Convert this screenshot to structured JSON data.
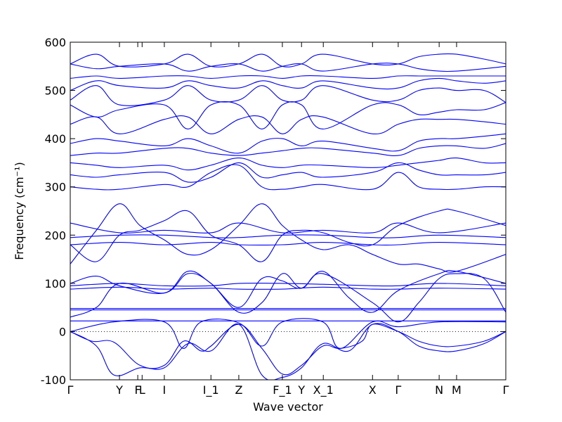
{
  "chart_data": {
    "type": "line",
    "title": "",
    "xlabel": "Wave vector",
    "ylabel": "Frequency (cm⁻¹)",
    "ylim": [
      -100,
      600
    ],
    "yticks": [
      -100,
      0,
      100,
      200,
      300,
      400,
      500,
      600
    ],
    "grid": false,
    "legend": "none",
    "line_color": "#0000ff",
    "zero_line": {
      "y": 0,
      "style": "dotted"
    },
    "xlim": [
      0,
      1
    ],
    "x_ticks": [
      {
        "label": "Γ",
        "x": 0.0
      },
      {
        "label": "Y",
        "x": 0.113
      },
      {
        "label": "F",
        "x": 0.155
      },
      {
        "label": "L",
        "x": 0.165
      },
      {
        "label": "I",
        "x": 0.216
      },
      {
        "label": "I_1",
        "x": 0.323
      },
      {
        "label": "Z",
        "x": 0.387
      },
      {
        "label": "F_1",
        "x": 0.487
      },
      {
        "label": "Y",
        "x": 0.531
      },
      {
        "label": "X_1",
        "x": 0.581
      },
      {
        "label": "X",
        "x": 0.694
      },
      {
        "label": "Γ",
        "x": 0.753
      },
      {
        "label": "N",
        "x": 0.847
      },
      {
        "label": "M",
        "x": 0.887
      },
      {
        "label": "Γ",
        "x": 1.0
      }
    ],
    "series": [
      {
        "x": [
          0,
          0.06,
          0.1,
          0.16,
          0.216,
          0.27,
          0.323,
          0.387,
          0.44,
          0.487,
          0.531,
          0.58,
          0.64,
          0.694,
          0.753,
          0.8,
          0.847,
          0.887,
          0.95,
          1.0
        ],
        "y": [
          0,
          -30,
          -90,
          -75,
          -75,
          -25,
          -40,
          15,
          -90,
          -95,
          -75,
          -25,
          -40,
          15,
          0,
          -30,
          -40,
          -40,
          -25,
          0
        ]
      },
      {
        "x": [
          0,
          0.05,
          0.1,
          0.16,
          0.216,
          0.26,
          0.3,
          0.323,
          0.387,
          0.44,
          0.487,
          0.531,
          0.58,
          0.62,
          0.67,
          0.694,
          0.753,
          0.8,
          0.847,
          0.887,
          0.95,
          1.0
        ],
        "y": [
          0,
          -20,
          -22,
          -70,
          -70,
          -20,
          -40,
          -30,
          15,
          -35,
          -88,
          -70,
          -30,
          -35,
          -20,
          15,
          0,
          -20,
          -30,
          -30,
          -20,
          0
        ]
      },
      {
        "x": [
          0,
          0.1,
          0.216,
          0.26,
          0.3,
          0.387,
          0.44,
          0.487,
          0.58,
          0.62,
          0.694,
          0.753,
          0.847,
          1.0
        ],
        "y": [
          0,
          20,
          20,
          -35,
          20,
          18,
          -30,
          20,
          20,
          -35,
          20,
          10,
          20,
          20
        ]
      },
      {
        "x": [
          0,
          0.1,
          0.216,
          0.3,
          0.387,
          0.487,
          0.58,
          0.694,
          0.753,
          0.847,
          1.0
        ],
        "y": [
          22,
          22,
          22,
          22,
          22,
          22,
          22,
          22,
          22,
          22,
          22
        ]
      },
      {
        "x": [
          0,
          0.1,
          0.216,
          0.3,
          0.387,
          0.487,
          0.58,
          0.694,
          0.753,
          0.847,
          1.0
        ],
        "y": [
          45,
          45,
          45,
          45,
          45,
          45,
          45,
          45,
          45,
          45,
          45
        ]
      },
      {
        "x": [
          0,
          0.1,
          0.216,
          0.3,
          0.387,
          0.487,
          0.58,
          0.694,
          0.753,
          0.847,
          1.0
        ],
        "y": [
          48,
          48,
          48,
          48,
          48,
          48,
          48,
          48,
          48,
          48,
          48
        ]
      },
      {
        "x": [
          0,
          0.06,
          0.113,
          0.216,
          0.27,
          0.323,
          0.387,
          0.44,
          0.487,
          0.531,
          0.58,
          0.694,
          0.753,
          0.8,
          0.847,
          0.887,
          0.95,
          1.0
        ],
        "y": [
          30,
          50,
          100,
          80,
          120,
          100,
          40,
          60,
          120,
          90,
          120,
          60,
          20,
          60,
          110,
          120,
          110,
          40
        ]
      },
      {
        "x": [
          0,
          0.06,
          0.113,
          0.216,
          0.27,
          0.323,
          0.387,
          0.44,
          0.487,
          0.531,
          0.58,
          0.64,
          0.694,
          0.753,
          0.847,
          0.887,
          1.0
        ],
        "y": [
          100,
          115,
          95,
          80,
          125,
          100,
          50,
          110,
          105,
          90,
          125,
          70,
          40,
          85,
          120,
          125,
          100
        ]
      },
      {
        "x": [
          0,
          0.113,
          0.216,
          0.323,
          0.387,
          0.487,
          0.58,
          0.694,
          0.753,
          0.847,
          1.0
        ],
        "y": [
          88,
          92,
          88,
          90,
          88,
          88,
          92,
          88,
          88,
          90,
          88
        ]
      },
      {
        "x": [
          0,
          0.113,
          0.216,
          0.323,
          0.387,
          0.487,
          0.58,
          0.694,
          0.753,
          0.847,
          1.0
        ],
        "y": [
          95,
          100,
          95,
          95,
          100,
          100,
          98,
          95,
          95,
          100,
          95
        ]
      },
      {
        "x": [
          0,
          0.06,
          0.113,
          0.16,
          0.216,
          0.27,
          0.323,
          0.387,
          0.44,
          0.487,
          0.531,
          0.58,
          0.64,
          0.694,
          0.753,
          0.8,
          0.847,
          0.887,
          1.0
        ],
        "y": [
          140,
          210,
          265,
          220,
          190,
          160,
          170,
          220,
          265,
          220,
          190,
          170,
          180,
          160,
          140,
          140,
          130,
          125,
          160
        ]
      },
      {
        "x": [
          0,
          0.06,
          0.113,
          0.16,
          0.216,
          0.27,
          0.323,
          0.387,
          0.44,
          0.487,
          0.531,
          0.58,
          0.64,
          0.694,
          0.753,
          0.847,
          0.887,
          1.0
        ],
        "y": [
          180,
          145,
          200,
          210,
          230,
          250,
          200,
          180,
          145,
          200,
          210,
          205,
          185,
          180,
          220,
          250,
          250,
          220
        ]
      },
      {
        "x": [
          0,
          0.113,
          0.216,
          0.323,
          0.387,
          0.487,
          0.58,
          0.694,
          0.753,
          0.847,
          1.0
        ],
        "y": [
          180,
          185,
          180,
          185,
          180,
          180,
          185,
          180,
          180,
          185,
          180
        ]
      },
      {
        "x": [
          0,
          0.113,
          0.216,
          0.323,
          0.387,
          0.487,
          0.58,
          0.694,
          0.753,
          0.847,
          1.0
        ],
        "y": [
          195,
          200,
          200,
          195,
          195,
          200,
          200,
          195,
          195,
          200,
          195
        ]
      },
      {
        "x": [
          0,
          0.113,
          0.216,
          0.323,
          0.387,
          0.487,
          0.58,
          0.694,
          0.753,
          0.847,
          1.0
        ],
        "y": [
          225,
          205,
          210,
          205,
          225,
          205,
          210,
          205,
          225,
          205,
          225
        ]
      },
      {
        "x": [
          0,
          0.06,
          0.113,
          0.216,
          0.27,
          0.323,
          0.387,
          0.44,
          0.487,
          0.531,
          0.58,
          0.694,
          0.753,
          0.8,
          0.847,
          0.887,
          0.95,
          1.0
        ],
        "y": [
          300,
          295,
          295,
          305,
          300,
          330,
          345,
          300,
          295,
          300,
          305,
          295,
          330,
          300,
          295,
          295,
          300,
          300
        ]
      },
      {
        "x": [
          0,
          0.06,
          0.113,
          0.216,
          0.27,
          0.323,
          0.387,
          0.44,
          0.487,
          0.531,
          0.58,
          0.694,
          0.753,
          0.8,
          0.847,
          0.887,
          0.95,
          1.0
        ],
        "y": [
          325,
          320,
          325,
          330,
          310,
          320,
          350,
          320,
          325,
          330,
          320,
          330,
          350,
          335,
          325,
          325,
          325,
          330
        ]
      },
      {
        "x": [
          0,
          0.06,
          0.113,
          0.216,
          0.27,
          0.323,
          0.387,
          0.44,
          0.487,
          0.531,
          0.58,
          0.694,
          0.753,
          0.8,
          0.847,
          0.887,
          0.95,
          1.0
        ],
        "y": [
          350,
          345,
          340,
          345,
          335,
          345,
          360,
          345,
          340,
          345,
          345,
          340,
          345,
          350,
          355,
          360,
          350,
          350
        ]
      },
      {
        "x": [
          0,
          0.06,
          0.113,
          0.216,
          0.27,
          0.323,
          0.387,
          0.44,
          0.487,
          0.531,
          0.58,
          0.694,
          0.753,
          0.8,
          0.847,
          0.887,
          0.95,
          1.0
        ],
        "y": [
          365,
          370,
          370,
          380,
          380,
          370,
          365,
          370,
          375,
          380,
          380,
          370,
          365,
          380,
          385,
          385,
          380,
          390
        ]
      },
      {
        "x": [
          0,
          0.06,
          0.113,
          0.216,
          0.27,
          0.323,
          0.387,
          0.44,
          0.487,
          0.531,
          0.58,
          0.694,
          0.753,
          0.8,
          0.847,
          0.887,
          0.95,
          1.0
        ],
        "y": [
          390,
          400,
          395,
          385,
          400,
          385,
          370,
          395,
          400,
          385,
          395,
          380,
          375,
          395,
          400,
          400,
          405,
          410
        ]
      },
      {
        "x": [
          0,
          0.06,
          0.113,
          0.216,
          0.27,
          0.323,
          0.387,
          0.44,
          0.487,
          0.531,
          0.58,
          0.694,
          0.753,
          0.8,
          0.847,
          0.887,
          0.95,
          1.0
        ],
        "y": [
          430,
          445,
          410,
          440,
          445,
          410,
          440,
          445,
          410,
          440,
          445,
          410,
          430,
          440,
          440,
          440,
          435,
          430
        ]
      },
      {
        "x": [
          0,
          0.06,
          0.113,
          0.216,
          0.27,
          0.323,
          0.387,
          0.44,
          0.487,
          0.531,
          0.58,
          0.694,
          0.753,
          0.8,
          0.847,
          0.887,
          0.95,
          1.0
        ],
        "y": [
          470,
          445,
          460,
          470,
          420,
          470,
          470,
          420,
          470,
          470,
          420,
          470,
          470,
          450,
          455,
          460,
          460,
          475
        ]
      },
      {
        "x": [
          0,
          0.06,
          0.113,
          0.216,
          0.27,
          0.323,
          0.387,
          0.44,
          0.487,
          0.531,
          0.58,
          0.694,
          0.753,
          0.8,
          0.847,
          0.887,
          0.95,
          1.0
        ],
        "y": [
          480,
          510,
          470,
          480,
          510,
          480,
          480,
          510,
          480,
          480,
          510,
          480,
          480,
          500,
          505,
          500,
          500,
          475
        ]
      },
      {
        "x": [
          0,
          0.06,
          0.113,
          0.216,
          0.27,
          0.323,
          0.387,
          0.44,
          0.487,
          0.531,
          0.58,
          0.694,
          0.753,
          0.8,
          0.847,
          0.887,
          0.95,
          1.0
        ],
        "y": [
          500,
          520,
          510,
          505,
          520,
          510,
          505,
          520,
          510,
          505,
          520,
          505,
          505,
          520,
          525,
          520,
          515,
          520
        ]
      },
      {
        "x": [
          0,
          0.06,
          0.113,
          0.216,
          0.27,
          0.323,
          0.387,
          0.44,
          0.487,
          0.531,
          0.58,
          0.694,
          0.753,
          0.8,
          0.847,
          0.887,
          0.95,
          1.0
        ],
        "y": [
          525,
          530,
          525,
          530,
          530,
          525,
          530,
          530,
          525,
          530,
          530,
          525,
          530,
          530,
          530,
          530,
          530,
          530
        ]
      },
      {
        "x": [
          0,
          0.06,
          0.113,
          0.216,
          0.27,
          0.323,
          0.387,
          0.44,
          0.487,
          0.531,
          0.58,
          0.694,
          0.753,
          0.8,
          0.847,
          0.887,
          0.95,
          1.0
        ],
        "y": [
          555,
          545,
          550,
          555,
          540,
          550,
          555,
          540,
          550,
          555,
          540,
          555,
          555,
          545,
          540,
          540,
          545,
          550
        ]
      },
      {
        "x": [
          0,
          0.06,
          0.113,
          0.216,
          0.27,
          0.323,
          0.387,
          0.44,
          0.487,
          0.531,
          0.58,
          0.694,
          0.753,
          0.8,
          0.847,
          0.887,
          0.95,
          1.0
        ],
        "y": [
          555,
          575,
          550,
          555,
          575,
          550,
          555,
          575,
          550,
          555,
          575,
          555,
          555,
          570,
          575,
          575,
          565,
          555
        ]
      }
    ]
  }
}
